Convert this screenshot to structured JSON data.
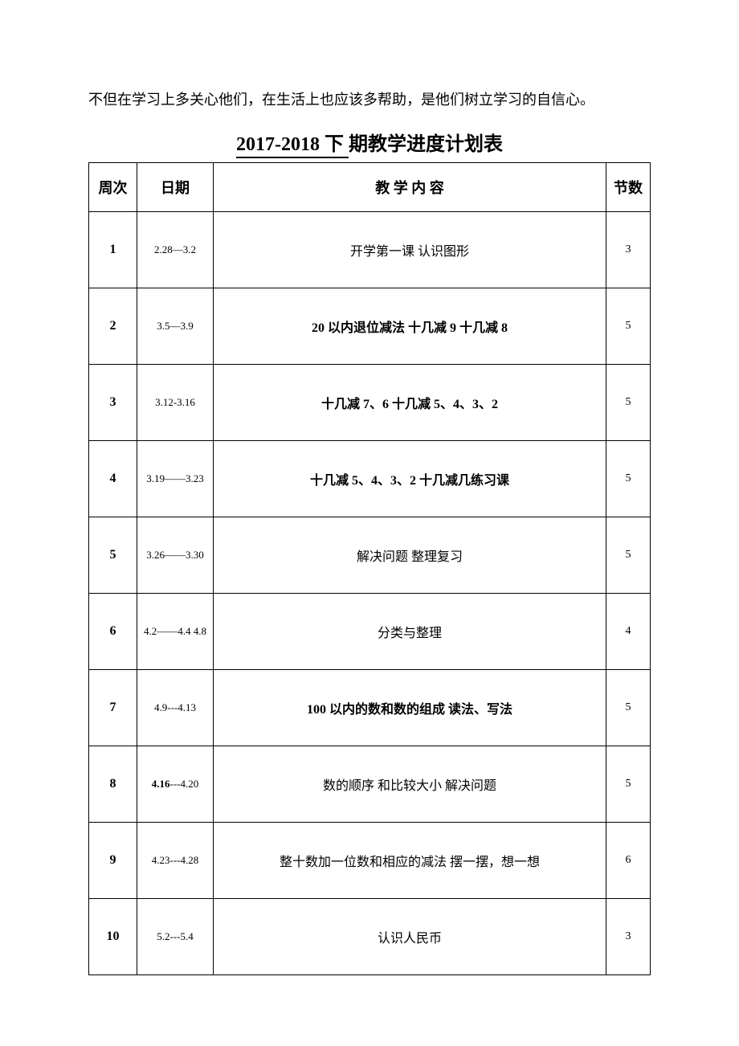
{
  "intro_text": "不但在学习上多关心他们，在生活上也应该多帮助，是他们树立学习的自信心。",
  "title_prefix": "  2017-2018 下   ",
  "title_suffix": "期教学进度计划表",
  "headers": {
    "week": "周次",
    "date": "日期",
    "content": "教  学  内  容",
    "count": "节数"
  },
  "rows": [
    {
      "week": "1",
      "date": "2.28—3.2",
      "content": "开学第一课    认识图形",
      "count": "3"
    },
    {
      "week": "2",
      "date": "3.5—3.9",
      "content": "20 以内退位减法   十几减 9   十几减 8",
      "count": "5",
      "content_bold": true
    },
    {
      "week": "3",
      "date": "3.12-3.16",
      "content": "十几减 7、6    十几减 5、4、3、2",
      "count": "5",
      "content_bold": true
    },
    {
      "week": "4",
      "date": "3.19——3.23",
      "content": "十几减 5、4、3、2     十几减几练习课",
      "count": "5",
      "content_bold": true
    },
    {
      "week": "5",
      "date": "3.26——3.30",
      "content": "解决问题   整理复习",
      "count": "5"
    },
    {
      "week": "6",
      "date": "4.2——4.4 4.8",
      "content": "分类与整理",
      "count": "4"
    },
    {
      "week": "7",
      "date": "4.9---4.13",
      "content": "100 以内的数和数的组成    读法、写法",
      "count": "5",
      "content_bold": true
    },
    {
      "week": "8",
      "date": "4.16---4.20",
      "content": "数的顺序  和比较大小   解决问题",
      "count": "5",
      "date_bold_prefix": "4.16"
    },
    {
      "week": "9",
      "date": "4.23---4.28",
      "content": "整十数加一位数和相应的减法    摆一摆，想一想",
      "count": "6"
    },
    {
      "week": "10",
      "date": "5.2---5.4",
      "content": "认识人民币",
      "count": "3"
    }
  ]
}
